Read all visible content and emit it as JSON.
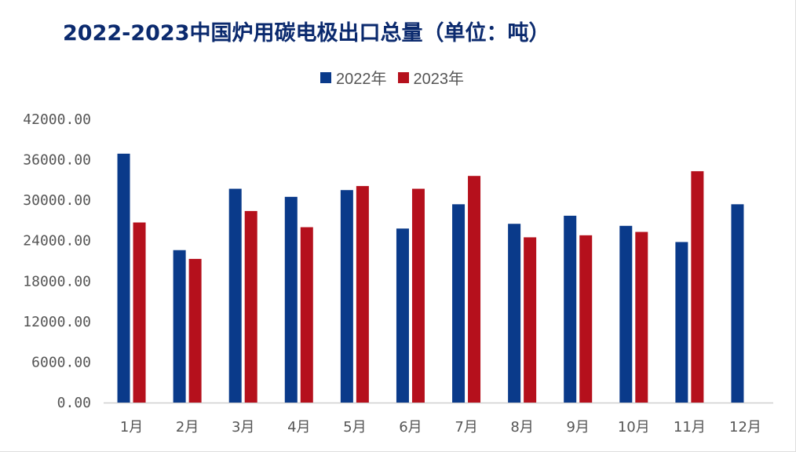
{
  "chart_data": {
    "type": "bar",
    "title": "2022-2023中国炉用碳电极出口总量（单位：吨）",
    "categories": [
      "1月",
      "2月",
      "3月",
      "4月",
      "5月",
      "6月",
      "7月",
      "8月",
      "9月",
      "10月",
      "11月",
      "12月"
    ],
    "series": [
      {
        "name": "2022年",
        "color": "#0a3a8a",
        "values": [
          36900,
          22600,
          31700,
          30500,
          31500,
          25800,
          29400,
          26500,
          27700,
          26200,
          23800,
          29400
        ]
      },
      {
        "name": "2023年",
        "color": "#b5101c",
        "values": [
          26700,
          21300,
          28400,
          26000,
          32100,
          31700,
          33600,
          24500,
          24800,
          25300,
          34300,
          null
        ]
      }
    ],
    "yticks": [
      "0.00",
      "6000.00",
      "12000.00",
      "18000.00",
      "24000.00",
      "30000.00",
      "36000.00",
      "42000.00"
    ],
    "ylim": [
      0,
      42000
    ],
    "legend_position": "top-center",
    "grid": false
  }
}
